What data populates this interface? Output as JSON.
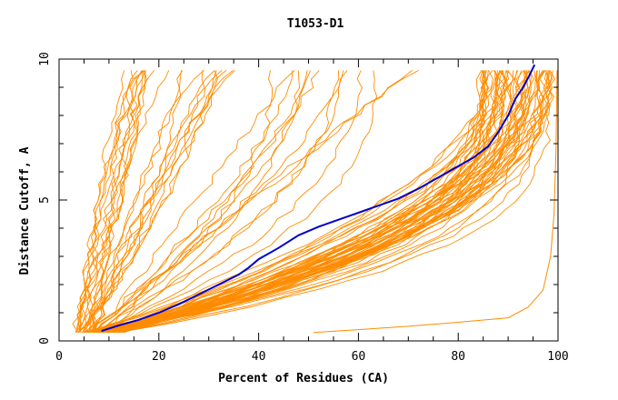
{
  "chart_data": {
    "type": "line",
    "title": "T1053-D1",
    "xlabel": "Percent of Residues (CA)",
    "ylabel": "Distance Cutoff, A",
    "xlim": [
      0,
      100
    ],
    "ylim": [
      0,
      10
    ],
    "xticks": [
      0,
      20,
      40,
      60,
      80,
      100
    ],
    "yticks": [
      0,
      5,
      10
    ],
    "grid": false,
    "colors": {
      "background_series": "#ff8c00",
      "highlight_series": "#0000cc",
      "axes": "#000000"
    },
    "highlight": {
      "x": [
        8.5,
        12,
        16,
        20,
        24,
        28,
        32,
        36,
        38,
        40,
        44,
        48,
        52,
        56,
        60,
        64,
        68,
        72,
        76,
        80,
        83,
        86,
        88,
        90,
        91.5,
        93,
        94.2,
        95.3
      ],
      "y": [
        0.35,
        0.55,
        0.75,
        1.0,
        1.3,
        1.65,
        2.0,
        2.35,
        2.6,
        2.9,
        3.3,
        3.75,
        4.05,
        4.3,
        4.55,
        4.8,
        5.05,
        5.4,
        5.8,
        6.2,
        6.5,
        6.9,
        7.4,
        8.0,
        8.6,
        9.0,
        9.4,
        9.8
      ]
    },
    "outlier": {
      "x": [
        51,
        60,
        70,
        80,
        90,
        94,
        97,
        98.5,
        99.2,
        99.6,
        99.8
      ],
      "y": [
        0.3,
        0.4,
        0.52,
        0.66,
        0.82,
        1.2,
        1.8,
        3.0,
        4.5,
        6.8,
        9.6
      ]
    },
    "bundles": [
      {
        "count": 12,
        "x0": [
          3,
          6.5
        ],
        "xTop": [
          13,
          19
        ],
        "kind": "concave"
      },
      {
        "count": 12,
        "x0": [
          4,
          7.5
        ],
        "xTop": [
          22,
          38
        ],
        "kind": "concave"
      },
      {
        "count": 14,
        "x0": [
          5,
          9
        ],
        "xTop": [
          42,
          72
        ],
        "kind": "mid"
      },
      {
        "count": 60,
        "x0": [
          5,
          13
        ],
        "xTop": [
          84,
          99
        ],
        "kind": "convex"
      }
    ]
  }
}
